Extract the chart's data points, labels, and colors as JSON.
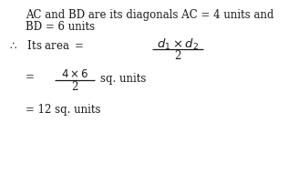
{
  "line1": "AC and BD are its diagonals AC = 4 units and",
  "line2": "BD = 6 units",
  "background_color": "#ffffff",
  "text_color": "#1a1a1a",
  "fontsize": 8.5
}
